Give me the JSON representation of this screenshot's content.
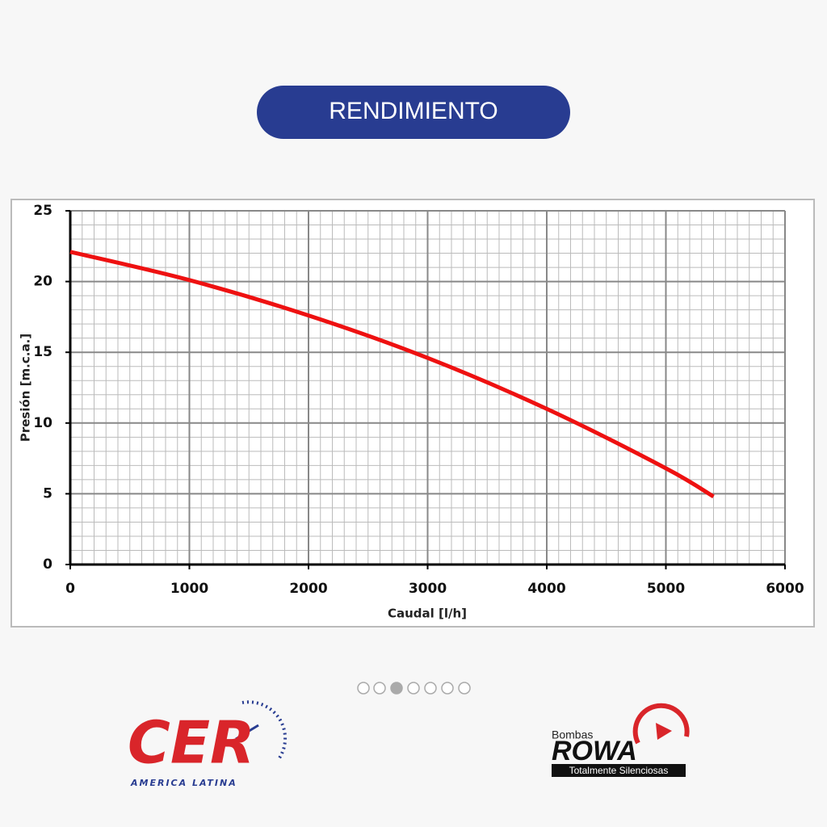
{
  "header": {
    "button": "RENDIMIENTO"
  },
  "chart_data": {
    "type": "line",
    "x_label": "Caudal [l/h]",
    "y_label": "Presión [m.c.a.]",
    "x": [
      0,
      1000,
      2000,
      3000,
      4000,
      5000,
      5400
    ],
    "series": [
      {
        "color": "#ee1111",
        "values": [
          22.1,
          20.1,
          17.6,
          14.6,
          11.0,
          6.8,
          4.8
        ]
      }
    ],
    "xlim": [
      0,
      6000
    ],
    "xticks": [
      0,
      1000,
      2000,
      3000,
      4000,
      5000,
      6000
    ],
    "ylim": [
      0,
      25
    ],
    "yticks": [
      0,
      5,
      10,
      15,
      20,
      25
    ],
    "grid": true
  },
  "logos": {
    "cer": "CER",
    "cer_sub": "AMERICA LATINA",
    "rowa_top": "Bombas",
    "rowa": "ROWA",
    "rowa_sub": "Totalmente Silenciosas"
  }
}
